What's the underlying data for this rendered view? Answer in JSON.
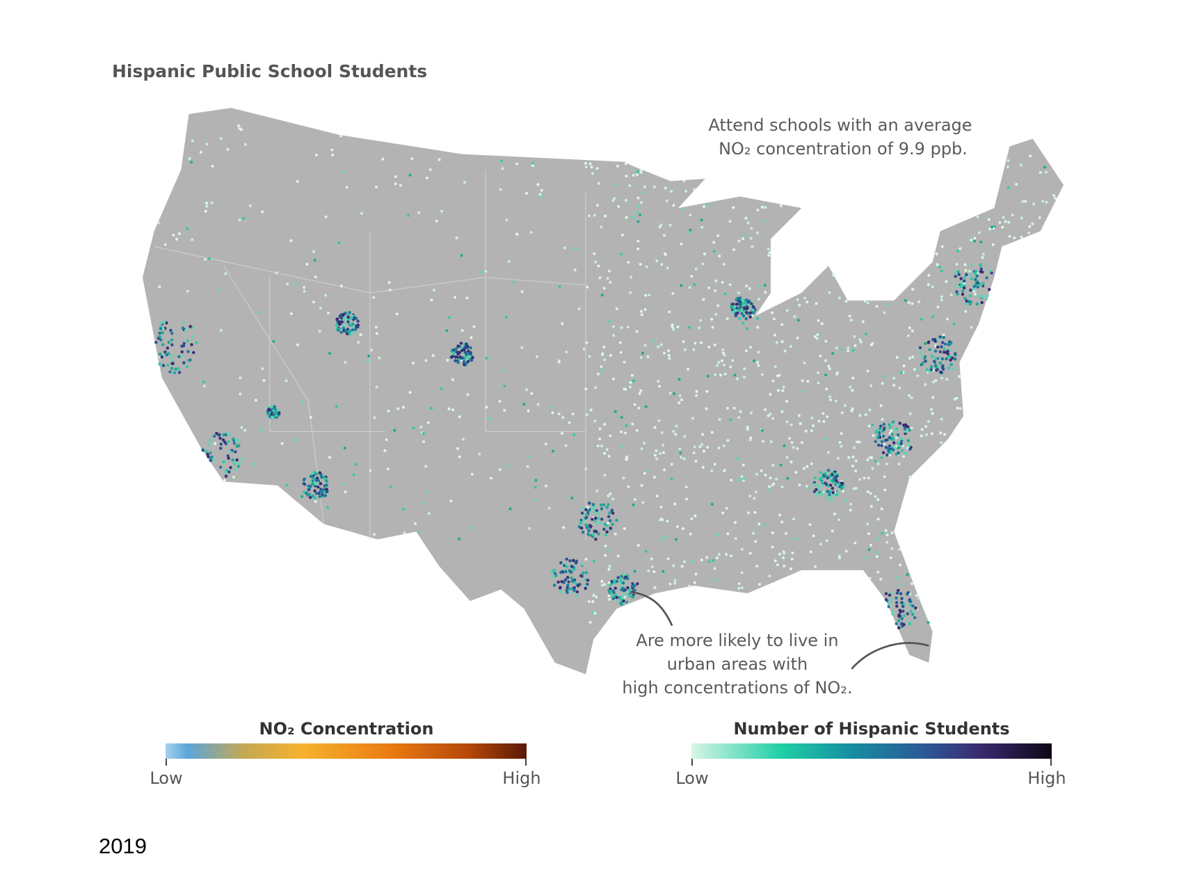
{
  "title": "Hispanic Public School Students",
  "annotations": {
    "top": {
      "lines": [
        "Attend schools with an average",
        "NO₂ concentration of 9.9 ppb."
      ]
    },
    "bottom": {
      "lines": [
        "Are more likely to live in",
        "urban areas with",
        "high concentrations of NO₂."
      ]
    }
  },
  "legends": [
    {
      "title": "NO₂ Concentration",
      "low": "Low",
      "high": "High"
    },
    {
      "title": "Number of Hispanic Students",
      "low": "Low",
      "high": "High"
    }
  ],
  "year": "2019"
}
